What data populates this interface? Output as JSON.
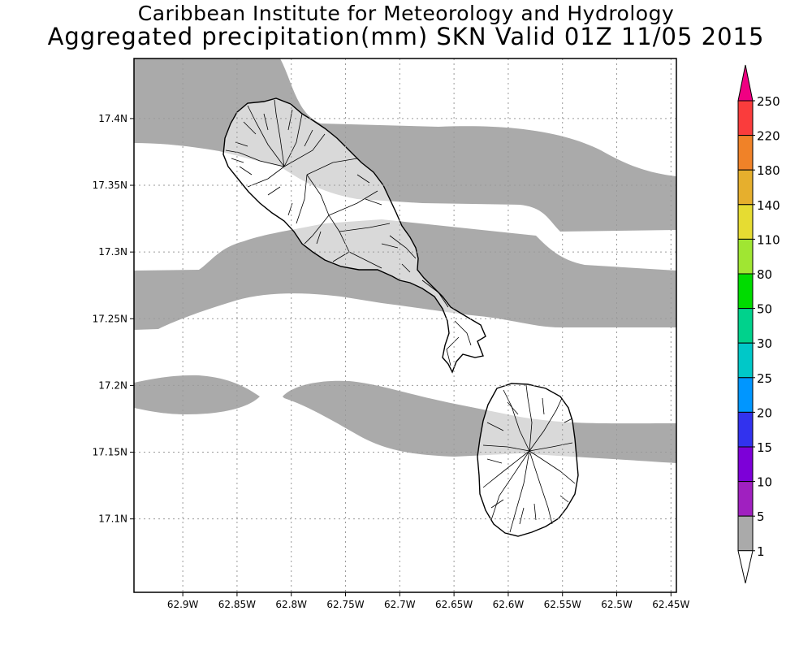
{
  "title": {
    "line1": "Caribbean Institute for Meteorology and Hydrology",
    "line2": "Aggregated precipitation(mm) SKN Valid 01Z 11/05 2015"
  },
  "map": {
    "lon_range": [
      -62.945,
      -62.445
    ],
    "lat_range": [
      17.045,
      17.445
    ],
    "x_ticks": [
      {
        "value": -62.9,
        "label": "62.9W"
      },
      {
        "value": -62.85,
        "label": "62.85W"
      },
      {
        "value": -62.8,
        "label": "62.8W"
      },
      {
        "value": -62.75,
        "label": "62.75W"
      },
      {
        "value": -62.7,
        "label": "62.7W"
      },
      {
        "value": -62.65,
        "label": "62.65W"
      },
      {
        "value": -62.6,
        "label": "62.6W"
      },
      {
        "value": -62.55,
        "label": "62.55W"
      },
      {
        "value": -62.5,
        "label": "62.5W"
      },
      {
        "value": -62.45,
        "label": "62.45W"
      }
    ],
    "y_ticks": [
      {
        "value": 17.4,
        "label": "17.4N"
      },
      {
        "value": 17.35,
        "label": "17.35N"
      },
      {
        "value": 17.3,
        "label": "17.3N"
      },
      {
        "value": 17.25,
        "label": "17.25N"
      },
      {
        "value": 17.2,
        "label": "17.2N"
      },
      {
        "value": 17.15,
        "label": "17.15N"
      },
      {
        "value": 17.1,
        "label": "17.1N"
      }
    ],
    "grid": "dotted",
    "precip_band_color": "#aaaaaa",
    "islands": [
      "St. Kitts",
      "Nevis"
    ]
  },
  "colorbar": {
    "levels": [
      {
        "label": "1",
        "color": "#aaaaaa"
      },
      {
        "label": "5",
        "color": "#a020c0"
      },
      {
        "label": "10",
        "color": "#7d00d8"
      },
      {
        "label": "15",
        "color": "#3232ee"
      },
      {
        "label": "20",
        "color": "#0096ff"
      },
      {
        "label": "25",
        "color": "#00c8c8"
      },
      {
        "label": "30",
        "color": "#00d28c"
      },
      {
        "label": "50",
        "color": "#00dc00"
      },
      {
        "label": "80",
        "color": "#a0e632"
      },
      {
        "label": "110",
        "color": "#e6dc32"
      },
      {
        "label": "140",
        "color": "#e6af2d"
      },
      {
        "label": "180",
        "color": "#f08228"
      },
      {
        "label": "220",
        "color": "#fa3c3c"
      },
      {
        "label": "250",
        "color": "#f00082"
      }
    ],
    "bottom_color": "#ffffff"
  }
}
